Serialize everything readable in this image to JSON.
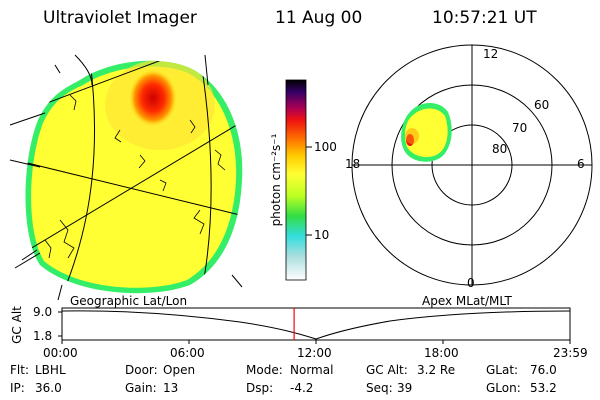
{
  "header": {
    "instrument": "Ultraviolet Imager",
    "date": "11 Aug 00",
    "time": "10:57:21 UT"
  },
  "colorbar": {
    "ticks": [
      "100",
      "10"
    ],
    "label": "photon cm⁻²s⁻¹"
  },
  "polar": {
    "lat_labels": [
      "60",
      "70",
      "80"
    ],
    "mlt_labels": {
      "top": "12",
      "bottom": "0",
      "left": "18",
      "right": "6"
    }
  },
  "altitude_strip": {
    "left_caption": "Geographic Lat/Lon",
    "right_caption": "Apex MLat/MLT",
    "y_axis_label": "GC Alt",
    "y_ticks": [
      "9.0",
      "1.8"
    ],
    "time_ticks": [
      "00:00",
      "06:00",
      "12:00",
      "18:00",
      "23:59"
    ],
    "current_time_marker_hours": 10.96
  },
  "footer": {
    "row1": [
      {
        "label": "Flt:",
        "value": "LBHL"
      },
      {
        "label": "Door:",
        "value": "Open"
      },
      {
        "label": "Mode:",
        "value": "Normal"
      },
      {
        "label": "GC Alt:",
        "value": "3.2 Re"
      },
      {
        "label": "GLat:",
        "value": "76.0"
      }
    ],
    "row2": [
      {
        "label": "IP:",
        "value": "36.0"
      },
      {
        "label": "Gain:",
        "value": "13"
      },
      {
        "label": "Dsp:",
        "value": "-4.2"
      },
      {
        "label": "Seq:",
        "value": "39"
      },
      {
        "label": "GLon:",
        "value": "53.2"
      }
    ]
  },
  "colors": {
    "disk": "#ffff33",
    "edge": "#33ee66",
    "hotspot": "#ee1111",
    "warm": "#ff9900",
    "marker": "#ff0000"
  }
}
